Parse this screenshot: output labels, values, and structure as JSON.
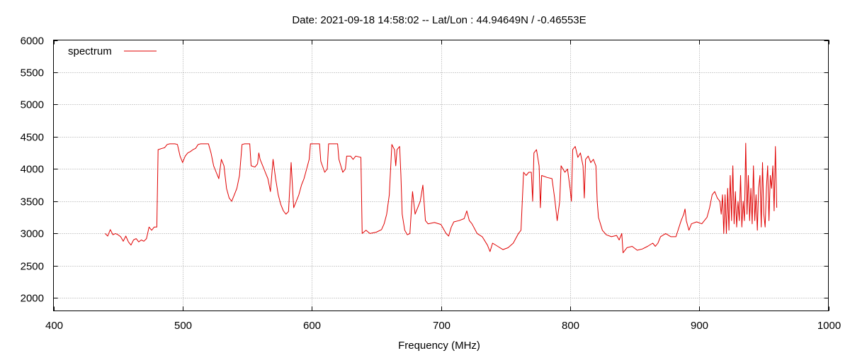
{
  "chart_data": {
    "type": "line",
    "title": "Date: 2021-09-18 14:58:02  --  Lat/Lon : 44.94649N / -0.46553E",
    "xlabel": "Frequency (MHz)",
    "ylabel": "",
    "xlim": [
      400,
      1000
    ],
    "ylim": [
      1800,
      6000
    ],
    "xticks": [
      400,
      500,
      600,
      700,
      800,
      900,
      1000
    ],
    "yticks": [
      2000,
      2500,
      3000,
      3500,
      4000,
      4500,
      5000,
      5500,
      6000
    ],
    "grid": true,
    "legend_position": "top-left",
    "series": [
      {
        "name": "spectrum",
        "color": "#e00000",
        "points": [
          [
            440,
            3000
          ],
          [
            442,
            2960
          ],
          [
            444,
            3060
          ],
          [
            446,
            2980
          ],
          [
            448,
            3000
          ],
          [
            450,
            2980
          ],
          [
            452,
            2950
          ],
          [
            454,
            2880
          ],
          [
            456,
            2960
          ],
          [
            458,
            2870
          ],
          [
            460,
            2820
          ],
          [
            462,
            2900
          ],
          [
            464,
            2920
          ],
          [
            466,
            2870
          ],
          [
            468,
            2900
          ],
          [
            470,
            2880
          ],
          [
            472,
            2920
          ],
          [
            474,
            3100
          ],
          [
            476,
            3050
          ],
          [
            478,
            3100
          ],
          [
            480,
            3100
          ],
          [
            481,
            4300
          ],
          [
            484,
            4320
          ],
          [
            486,
            4330
          ],
          [
            488,
            4380
          ],
          [
            490,
            4390
          ],
          [
            494,
            4390
          ],
          [
            496,
            4380
          ],
          [
            498,
            4200
          ],
          [
            500,
            4100
          ],
          [
            502,
            4200
          ],
          [
            504,
            4250
          ],
          [
            506,
            4270
          ],
          [
            508,
            4300
          ],
          [
            510,
            4320
          ],
          [
            512,
            4380
          ],
          [
            514,
            4390
          ],
          [
            518,
            4390
          ],
          [
            520,
            4390
          ],
          [
            522,
            4250
          ],
          [
            524,
            4050
          ],
          [
            526,
            3950
          ],
          [
            528,
            3850
          ],
          [
            530,
            4150
          ],
          [
            532,
            4050
          ],
          [
            534,
            3700
          ],
          [
            536,
            3550
          ],
          [
            538,
            3500
          ],
          [
            540,
            3600
          ],
          [
            542,
            3700
          ],
          [
            544,
            3900
          ],
          [
            546,
            4380
          ],
          [
            548,
            4390
          ],
          [
            552,
            4390
          ],
          [
            553,
            4050
          ],
          [
            556,
            4030
          ],
          [
            558,
            4080
          ],
          [
            559,
            4250
          ],
          [
            560,
            4150
          ],
          [
            562,
            4050
          ],
          [
            564,
            3950
          ],
          [
            566,
            3850
          ],
          [
            568,
            3650
          ],
          [
            570,
            4150
          ],
          [
            572,
            3850
          ],
          [
            574,
            3600
          ],
          [
            576,
            3450
          ],
          [
            578,
            3350
          ],
          [
            580,
            3300
          ],
          [
            582,
            3340
          ],
          [
            584,
            4100
          ],
          [
            586,
            3400
          ],
          [
            588,
            3500
          ],
          [
            590,
            3600
          ],
          [
            592,
            3750
          ],
          [
            594,
            3850
          ],
          [
            596,
            4000
          ],
          [
            598,
            4150
          ],
          [
            599,
            4390
          ],
          [
            602,
            4390
          ],
          [
            606,
            4390
          ],
          [
            607,
            4120
          ],
          [
            610,
            3950
          ],
          [
            612,
            4000
          ],
          [
            613,
            4390
          ],
          [
            617,
            4390
          ],
          [
            620,
            4390
          ],
          [
            621,
            4150
          ],
          [
            624,
            3950
          ],
          [
            626,
            4000
          ],
          [
            627,
            4200
          ],
          [
            630,
            4200
          ],
          [
            632,
            4150
          ],
          [
            634,
            4200
          ],
          [
            638,
            4180
          ],
          [
            639,
            3000
          ],
          [
            642,
            3050
          ],
          [
            645,
            3000
          ],
          [
            650,
            3020
          ],
          [
            654,
            3060
          ],
          [
            656,
            3150
          ],
          [
            658,
            3300
          ],
          [
            660,
            3600
          ],
          [
            662,
            4380
          ],
          [
            664,
            4300
          ],
          [
            665,
            4050
          ],
          [
            666,
            4300
          ],
          [
            668,
            4350
          ],
          [
            669,
            3900
          ],
          [
            670,
            3300
          ],
          [
            672,
            3050
          ],
          [
            674,
            2980
          ],
          [
            676,
            3000
          ],
          [
            678,
            3650
          ],
          [
            680,
            3300
          ],
          [
            682,
            3400
          ],
          [
            684,
            3500
          ],
          [
            686,
            3750
          ],
          [
            688,
            3200
          ],
          [
            690,
            3150
          ],
          [
            695,
            3170
          ],
          [
            700,
            3140
          ],
          [
            704,
            3000
          ],
          [
            706,
            2960
          ],
          [
            708,
            3100
          ],
          [
            710,
            3180
          ],
          [
            714,
            3200
          ],
          [
            718,
            3230
          ],
          [
            720,
            3350
          ],
          [
            722,
            3200
          ],
          [
            724,
            3150
          ],
          [
            728,
            3000
          ],
          [
            732,
            2950
          ],
          [
            736,
            2820
          ],
          [
            738,
            2720
          ],
          [
            740,
            2850
          ],
          [
            744,
            2800
          ],
          [
            748,
            2750
          ],
          [
            752,
            2780
          ],
          [
            756,
            2850
          ],
          [
            760,
            3000
          ],
          [
            762,
            3050
          ],
          [
            764,
            3950
          ],
          [
            766,
            3900
          ],
          [
            768,
            3950
          ],
          [
            770,
            3950
          ],
          [
            771,
            3500
          ],
          [
            772,
            4250
          ],
          [
            774,
            4300
          ],
          [
            776,
            4050
          ],
          [
            777,
            3400
          ],
          [
            778,
            3900
          ],
          [
            782,
            3870
          ],
          [
            786,
            3850
          ],
          [
            788,
            3550
          ],
          [
            790,
            3200
          ],
          [
            792,
            3500
          ],
          [
            793,
            4050
          ],
          [
            796,
            3950
          ],
          [
            798,
            4000
          ],
          [
            800,
            3700
          ],
          [
            801,
            3500
          ],
          [
            802,
            4300
          ],
          [
            804,
            4350
          ],
          [
            806,
            4180
          ],
          [
            808,
            4250
          ],
          [
            810,
            4050
          ],
          [
            811,
            3550
          ],
          [
            812,
            4150
          ],
          [
            814,
            4200
          ],
          [
            816,
            4100
          ],
          [
            818,
            4150
          ],
          [
            820,
            4050
          ],
          [
            821,
            3500
          ],
          [
            822,
            3250
          ],
          [
            825,
            3050
          ],
          [
            828,
            2980
          ],
          [
            832,
            2950
          ],
          [
            836,
            2970
          ],
          [
            838,
            2900
          ],
          [
            840,
            3000
          ],
          [
            841,
            2700
          ],
          [
            844,
            2780
          ],
          [
            848,
            2800
          ],
          [
            852,
            2740
          ],
          [
            856,
            2760
          ],
          [
            860,
            2800
          ],
          [
            864,
            2850
          ],
          [
            866,
            2800
          ],
          [
            868,
            2850
          ],
          [
            870,
            2950
          ],
          [
            874,
            3000
          ],
          [
            878,
            2950
          ],
          [
            882,
            2950
          ],
          [
            886,
            3200
          ],
          [
            888,
            3300
          ],
          [
            889,
            3380
          ],
          [
            890,
            3200
          ],
          [
            892,
            3050
          ],
          [
            894,
            3150
          ],
          [
            898,
            3180
          ],
          [
            902,
            3150
          ],
          [
            906,
            3250
          ],
          [
            908,
            3400
          ],
          [
            910,
            3600
          ],
          [
            912,
            3650
          ],
          [
            914,
            3550
          ],
          [
            916,
            3500
          ],
          [
            917,
            3300
          ],
          [
            918,
            3600
          ],
          [
            919,
            3000
          ],
          [
            920,
            3600
          ],
          [
            921,
            3000
          ],
          [
            922,
            3700
          ],
          [
            923,
            3050
          ],
          [
            924,
            3900
          ],
          [
            925,
            3200
          ],
          [
            926,
            4050
          ],
          [
            927,
            3150
          ],
          [
            928,
            3650
          ],
          [
            929,
            3100
          ],
          [
            930,
            3500
          ],
          [
            931,
            3200
          ],
          [
            932,
            3900
          ],
          [
            933,
            3100
          ],
          [
            934,
            3500
          ],
          [
            935,
            3200
          ],
          [
            936,
            4400
          ],
          [
            937,
            3300
          ],
          [
            938,
            3900
          ],
          [
            939,
            3200
          ],
          [
            940,
            3700
          ],
          [
            941,
            3150
          ],
          [
            942,
            4050
          ],
          [
            943,
            3200
          ],
          [
            944,
            3600
          ],
          [
            945,
            3050
          ],
          [
            946,
            3700
          ],
          [
            947,
            3900
          ],
          [
            948,
            3100
          ],
          [
            949,
            4100
          ],
          [
            950,
            3300
          ],
          [
            951,
            3100
          ],
          [
            952,
            3700
          ],
          [
            953,
            4050
          ],
          [
            954,
            3200
          ],
          [
            955,
            3900
          ],
          [
            956,
            3700
          ],
          [
            957,
            4050
          ],
          [
            958,
            3350
          ],
          [
            959,
            4350
          ],
          [
            960,
            3400
          ]
        ]
      }
    ]
  }
}
